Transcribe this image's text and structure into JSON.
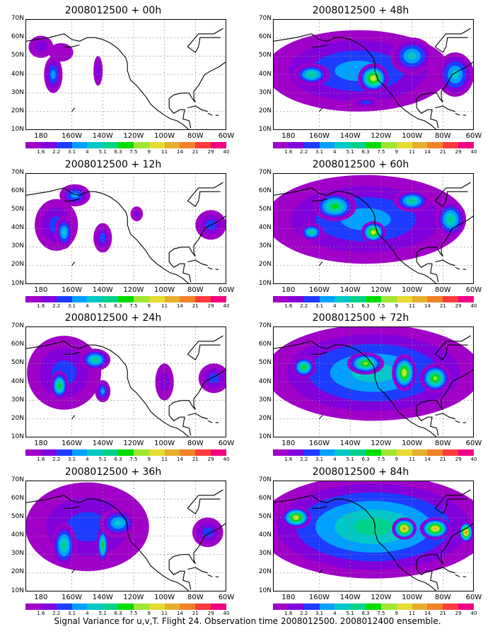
{
  "caption": "Signal Variance for u,v,T. Flight 24. Observation time 2008012500. 2008012400 ensemble.",
  "lat_labels": [
    "70N",
    "60N",
    "50N",
    "40N",
    "30N",
    "20N",
    "10N"
  ],
  "lon_labels": [
    "180",
    "160W",
    "140W",
    "120W",
    "100W",
    "80W",
    "60W"
  ],
  "colorbar": {
    "labels": [
      "1.6",
      "2.2",
      "3.1",
      "4",
      "5.1",
      "6.3",
      "7.5",
      "9",
      "11",
      "14",
      "21",
      "29",
      "40"
    ],
    "colors": [
      "#a000c8",
      "#8200dc",
      "#1e3cff",
      "#00a0ff",
      "#00c8c8",
      "#00d28c",
      "#00dc00",
      "#a0e632",
      "#e6dc32",
      "#e6af2d",
      "#f08228",
      "#fa3c3c",
      "#f00082"
    ]
  },
  "chart_data": {
    "type": "heatmap",
    "xlabel": "",
    "ylabel": "",
    "xlim": [
      -190,
      -60
    ],
    "ylim": [
      10,
      70
    ],
    "panels": [
      {
        "title": "2008012500 + 00h",
        "position": "col1-row1",
        "blobs": [
          {
            "lon": -180,
            "lat": 55,
            "rx": 8,
            "ry": 6,
            "levels": 2
          },
          {
            "lon": -172,
            "lat": 40,
            "rx": 6,
            "ry": 10,
            "levels": 4
          },
          {
            "lon": -167,
            "lat": 52,
            "rx": 8,
            "ry": 5,
            "levels": 1
          },
          {
            "lon": -143,
            "lat": 42,
            "rx": 3,
            "ry": 8,
            "levels": 2
          }
        ]
      },
      {
        "title": "2008012500 + 12h",
        "position": "col1-row2",
        "blobs": [
          {
            "lon": -170,
            "lat": 42,
            "rx": 14,
            "ry": 14,
            "levels": 3
          },
          {
            "lon": -165,
            "lat": 38,
            "rx": 6,
            "ry": 9,
            "levels": 5
          },
          {
            "lon": -158,
            "lat": 58,
            "rx": 10,
            "ry": 6,
            "levels": 4
          },
          {
            "lon": -140,
            "lat": 35,
            "rx": 6,
            "ry": 8,
            "levels": 3
          },
          {
            "lon": -118,
            "lat": 48,
            "rx": 4,
            "ry": 4,
            "levels": 2
          },
          {
            "lon": -70,
            "lat": 42,
            "rx": 10,
            "ry": 8,
            "levels": 3
          }
        ]
      },
      {
        "title": "2008012500 + 24h",
        "position": "col1-row3",
        "blobs": [
          {
            "lon": -165,
            "lat": 45,
            "rx": 24,
            "ry": 20,
            "levels": 3
          },
          {
            "lon": -168,
            "lat": 38,
            "rx": 6,
            "ry": 8,
            "levels": 7
          },
          {
            "lon": -145,
            "lat": 52,
            "rx": 10,
            "ry": 6,
            "levels": 6
          },
          {
            "lon": -140,
            "lat": 35,
            "rx": 5,
            "ry": 6,
            "levels": 4
          },
          {
            "lon": -100,
            "lat": 40,
            "rx": 6,
            "ry": 10,
            "levels": 2
          },
          {
            "lon": -68,
            "lat": 42,
            "rx": 10,
            "ry": 8,
            "levels": 3
          }
        ]
      },
      {
        "title": "2008012500 + 36h",
        "position": "col1-row4",
        "blobs": [
          {
            "lon": -150,
            "lat": 45,
            "rx": 40,
            "ry": 24,
            "levels": 3
          },
          {
            "lon": -165,
            "lat": 35,
            "rx": 8,
            "ry": 12,
            "levels": 6
          },
          {
            "lon": -140,
            "lat": 35,
            "rx": 4,
            "ry": 10,
            "levels": 7
          },
          {
            "lon": -130,
            "lat": 47,
            "rx": 12,
            "ry": 8,
            "levels": 5
          },
          {
            "lon": -72,
            "lat": 42,
            "rx": 10,
            "ry": 8,
            "levels": 3
          }
        ]
      },
      {
        "title": "2008012500 + 48h",
        "position": "col2-row1",
        "blobs": [
          {
            "lon": -135,
            "lat": 42,
            "rx": 60,
            "ry": 22,
            "levels": 4
          },
          {
            "lon": -165,
            "lat": 40,
            "rx": 12,
            "ry": 6,
            "levels": 6
          },
          {
            "lon": -125,
            "lat": 38,
            "rx": 10,
            "ry": 8,
            "levels": 9
          },
          {
            "lon": -100,
            "lat": 50,
            "rx": 14,
            "ry": 10,
            "levels": 5
          },
          {
            "lon": -72,
            "lat": 40,
            "rx": 12,
            "ry": 12,
            "levels": 5
          },
          {
            "lon": -130,
            "lat": 25,
            "rx": 10,
            "ry": 3,
            "levels": 3
          }
        ]
      },
      {
        "title": "2008012500 + 60h",
        "position": "col2-row2",
        "blobs": [
          {
            "lon": -130,
            "lat": 45,
            "rx": 65,
            "ry": 24,
            "levels": 4
          },
          {
            "lon": -125,
            "lat": 38,
            "rx": 8,
            "ry": 6,
            "levels": 9
          },
          {
            "lon": -150,
            "lat": 52,
            "rx": 14,
            "ry": 8,
            "levels": 7
          },
          {
            "lon": -100,
            "lat": 55,
            "rx": 12,
            "ry": 6,
            "levels": 6
          },
          {
            "lon": -75,
            "lat": 45,
            "rx": 10,
            "ry": 10,
            "levels": 6
          },
          {
            "lon": -165,
            "lat": 38,
            "rx": 8,
            "ry": 5,
            "levels": 6
          }
        ]
      },
      {
        "title": "2008012500 + 72h",
        "position": "col2-row3",
        "blobs": [
          {
            "lon": -125,
            "lat": 45,
            "rx": 70,
            "ry": 26,
            "levels": 5
          },
          {
            "lon": -130,
            "lat": 50,
            "rx": 12,
            "ry": 6,
            "levels": 8
          },
          {
            "lon": -105,
            "lat": 45,
            "rx": 8,
            "ry": 10,
            "levels": 9
          },
          {
            "lon": -170,
            "lat": 48,
            "rx": 8,
            "ry": 6,
            "levels": 7
          },
          {
            "lon": -85,
            "lat": 42,
            "rx": 10,
            "ry": 8,
            "levels": 8
          }
        ]
      },
      {
        "title": "2008012500 + 84h",
        "position": "col2-row4",
        "blobs": [
          {
            "lon": -125,
            "lat": 45,
            "rx": 75,
            "ry": 28,
            "levels": 6
          },
          {
            "lon": -105,
            "lat": 44,
            "rx": 8,
            "ry": 6,
            "levels": 11
          },
          {
            "lon": -175,
            "lat": 50,
            "rx": 10,
            "ry": 6,
            "levels": 9
          },
          {
            "lon": -85,
            "lat": 44,
            "rx": 10,
            "ry": 6,
            "levels": 10
          },
          {
            "lon": -65,
            "lat": 42,
            "rx": 5,
            "ry": 6,
            "levels": 11
          }
        ]
      }
    ]
  }
}
